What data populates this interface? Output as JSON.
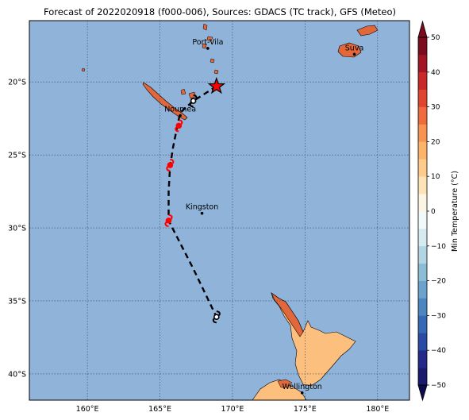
{
  "title": "Forecast of 2022020918 (f000-006), Sources: GDACS (TC track), GFS (Meteo)",
  "map": {
    "lon_range": [
      156,
      182.2
    ],
    "lat_range": [
      -41.8,
      -15.8
    ],
    "ocean_color": "#8fb3d9",
    "grid": "dotted",
    "lon_ticks": [
      {
        "value": 160,
        "label": "160°E"
      },
      {
        "value": 165,
        "label": "165°E"
      },
      {
        "value": 170,
        "label": "170°E"
      },
      {
        "value": 175,
        "label": "175°E"
      },
      {
        "value": 180,
        "label": "180°E"
      }
    ],
    "lat_ticks": [
      {
        "value": -20,
        "label": "20°S"
      },
      {
        "value": -25,
        "label": "25°S"
      },
      {
        "value": -30,
        "label": "30°S"
      },
      {
        "value": -35,
        "label": "35°S"
      },
      {
        "value": -40,
        "label": "40°S"
      }
    ]
  },
  "cities": [
    {
      "name": "Port-Vila",
      "lon": 168.3,
      "lat": -17.7
    },
    {
      "name": "Suva",
      "lon": 178.4,
      "lat": -18.1
    },
    {
      "name": "Noumea",
      "lon": 166.4,
      "lat": -22.3
    },
    {
      "name": "Kingston",
      "lon": 167.9,
      "lat": -29.0
    },
    {
      "name": "Wellington",
      "lon": 174.8,
      "lat": -41.3
    }
  ],
  "track": {
    "points": [
      {
        "lon": 168.9,
        "lat": -20.3
      },
      {
        "lon": 167.3,
        "lat": -21.3
      },
      {
        "lon": 166.4,
        "lat": -22.1
      },
      {
        "lon": 166.2,
        "lat": -23.0
      },
      {
        "lon": 165.9,
        "lat": -24.5
      },
      {
        "lon": 165.7,
        "lat": -25.8
      },
      {
        "lon": 165.6,
        "lat": -27.5
      },
      {
        "lon": 165.6,
        "lat": -29.5
      },
      {
        "lon": 167.3,
        "lat": -32.8
      },
      {
        "lon": 168.9,
        "lat": -36.1
      }
    ],
    "current_position": {
      "lon": 168.9,
      "lat": -20.3
    },
    "cyclone_symbols": [
      {
        "lon": 167.3,
        "lat": -21.3,
        "color": "black"
      },
      {
        "lon": 166.3,
        "lat": -23.0,
        "color": "red"
      },
      {
        "lon": 165.7,
        "lat": -25.7,
        "color": "red"
      },
      {
        "lon": 165.6,
        "lat": -29.5,
        "color": "red"
      },
      {
        "lon": 168.9,
        "lat": -36.1,
        "color": "black"
      }
    ]
  },
  "colorbar": {
    "label": "Min Temperature (°C)",
    "min": -50,
    "max": 50,
    "step": 5,
    "tick_values": [
      -50,
      -40,
      -30,
      -20,
      -10,
      0,
      10,
      20,
      30,
      40,
      50
    ],
    "colors": [
      "#1a1a6e",
      "#232a8a",
      "#2a4aa6",
      "#3568b5",
      "#4c86c0",
      "#6ba3cc",
      "#8cbcd6",
      "#b2d5e3",
      "#d6ebf0",
      "#f2f9fb",
      "#fdf5e4",
      "#fde3b8",
      "#fdcc8a",
      "#fcb46a",
      "#f89352",
      "#ef6b3e",
      "#e0452f",
      "#c8282a",
      "#a31524",
      "#7a0c1e"
    ]
  }
}
